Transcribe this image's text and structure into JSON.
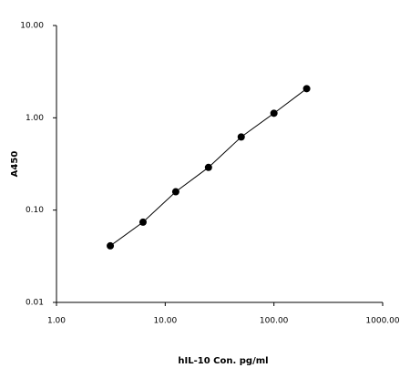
{
  "chart_data": {
    "type": "scatter",
    "x_label": "hIL-10 Con. pg/ml",
    "y_label": "A450",
    "x": [
      3.125,
      6.25,
      12.5,
      25,
      50,
      100,
      200
    ],
    "series": [
      {
        "color": "#000000",
        "values": [
          0.041,
          0.074,
          0.158,
          0.29,
          0.62,
          1.12,
          2.07
        ]
      }
    ],
    "xlim": [
      1,
      1000
    ],
    "ylim": [
      0.01,
      10
    ],
    "xticks": [
      {
        "value": 1,
        "label": "1.00"
      },
      {
        "value": 10,
        "label": "10.00"
      },
      {
        "value": 100,
        "label": "100.00"
      },
      {
        "value": 1000,
        "label": "1000.00"
      }
    ],
    "yticks": [
      {
        "value": 0.01,
        "label": "0.01"
      },
      {
        "value": 0.1,
        "label": "0.10"
      },
      {
        "value": 1,
        "label": "1.00"
      },
      {
        "value": 10,
        "label": "10.00"
      }
    ],
    "x_log": true,
    "y_log": true,
    "line": true
  }
}
